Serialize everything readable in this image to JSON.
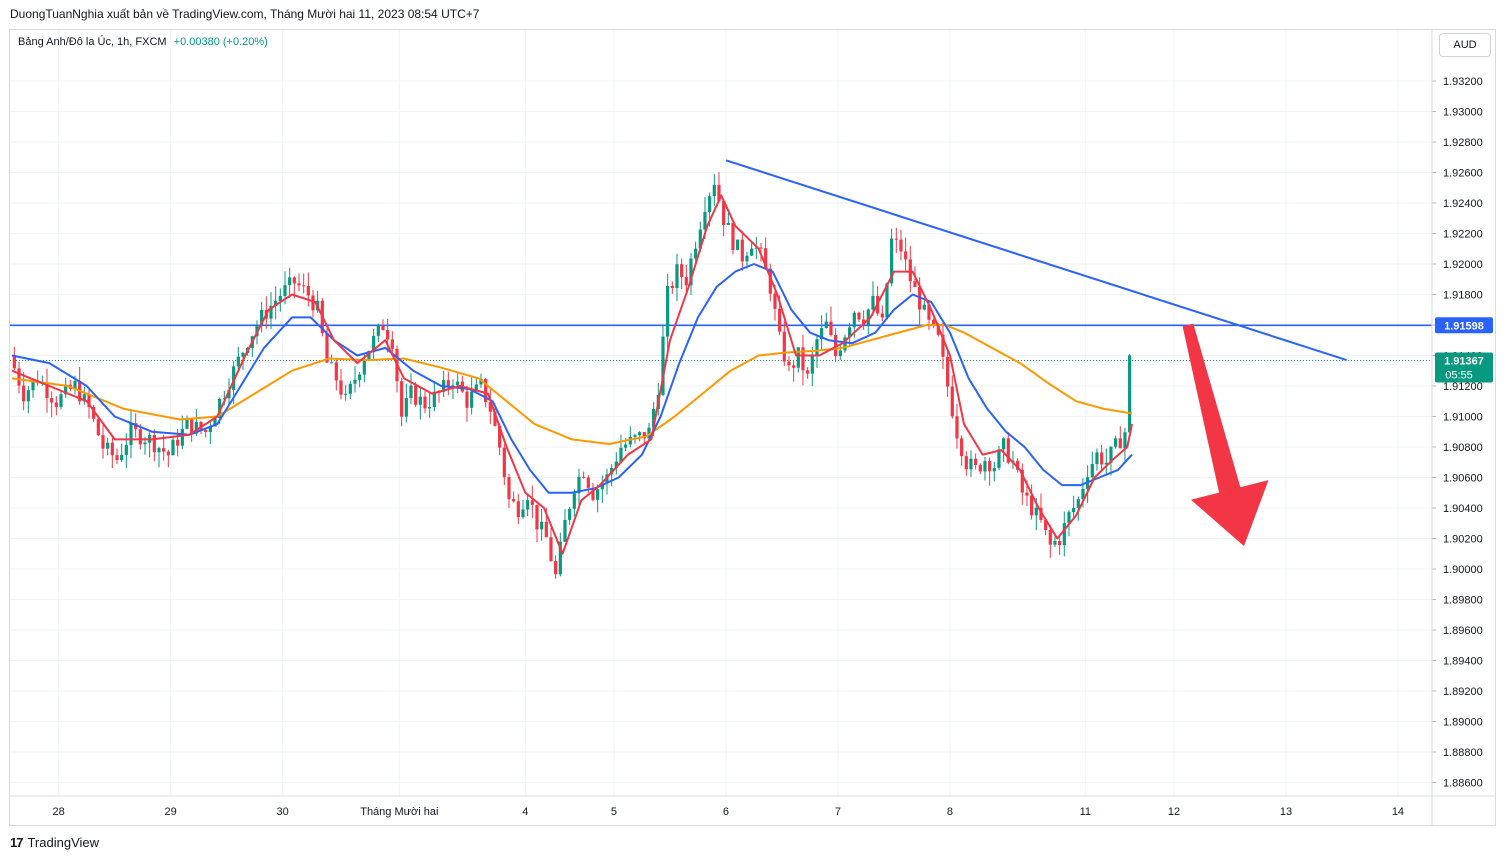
{
  "header": {
    "publisher_line": "DuongTuanNghia xuất bản về TradingView.com, Tháng Mười hai 11, 2023 08:54 UTC+7"
  },
  "legend": {
    "symbol": "Bảng Anh/Đô la Úc, 1h, FXCM",
    "change": "+0.00380 (+0.20%)"
  },
  "currency_button": "AUD",
  "footer": {
    "logo_mark": "17",
    "logo_text": "TradingView"
  },
  "colors": {
    "up": "#089981",
    "down": "#f23645",
    "ema_fast": "#f23645",
    "ema_mid": "#2962ff",
    "ema_slow": "#ff9800",
    "trendline": "#2962ff",
    "arrow": "#f23645",
    "badge": "#2962ff",
    "price_badge": "#089981"
  },
  "chart_data": {
    "type": "candlestick",
    "symbol": "GBPAUD",
    "interval": "1h",
    "ylim": [
      1.885,
      1.9335
    ],
    "y_ticks": [
      "1.93200",
      "1.93000",
      "1.92800",
      "1.92600",
      "1.92400",
      "1.92200",
      "1.92000",
      "1.91800",
      "1.91600",
      "1.91400",
      "1.91200",
      "1.91000",
      "1.90800",
      "1.90600",
      "1.90400",
      "1.90200",
      "1.90000",
      "1.89800",
      "1.89600",
      "1.89400",
      "1.89200",
      "1.89000",
      "1.88800",
      "1.88600"
    ],
    "x_ticks": [
      {
        "label": "28",
        "t": 5
      },
      {
        "label": "29",
        "t": 17
      },
      {
        "label": "30",
        "t": 29
      },
      {
        "label": "Tháng Mười hai",
        "t": 41.5
      },
      {
        "label": "4",
        "t": 55
      },
      {
        "label": "5",
        "t": 64.5
      },
      {
        "label": "6",
        "t": 76.5
      },
      {
        "label": "7",
        "t": 88.5
      },
      {
        "label": "8",
        "t": 100.5
      },
      {
        "label": "11",
        "t": 115
      },
      {
        "label": "12",
        "t": 124.5
      },
      {
        "label": "13",
        "t": 136.5
      },
      {
        "label": "14",
        "t": 148.5
      }
    ],
    "close_path": [
      [
        0,
        1.914
      ],
      [
        1.5,
        1.9115
      ],
      [
        3,
        1.9125
      ],
      [
        5,
        1.911
      ],
      [
        7,
        1.912
      ],
      [
        8.5,
        1.9105
      ],
      [
        10,
        1.908
      ],
      [
        11.5,
        1.9072
      ],
      [
        13,
        1.909
      ],
      [
        15,
        1.9085
      ],
      [
        17,
        1.9075
      ],
      [
        19,
        1.9095
      ],
      [
        21,
        1.909
      ],
      [
        22.5,
        1.911
      ],
      [
        24,
        1.913
      ],
      [
        25.5,
        1.915
      ],
      [
        27,
        1.9165
      ],
      [
        29,
        1.918
      ],
      [
        30.5,
        1.9188
      ],
      [
        32,
        1.918
      ],
      [
        33,
        1.917
      ],
      [
        34,
        1.9135
      ],
      [
        35,
        1.9125
      ],
      [
        36,
        1.911
      ],
      [
        37,
        1.9125
      ],
      [
        38,
        1.914
      ],
      [
        39,
        1.915
      ],
      [
        40,
        1.916
      ],
      [
        41,
        1.915
      ],
      [
        42,
        1.91
      ],
      [
        43,
        1.9115
      ],
      [
        44.5,
        1.9108
      ],
      [
        46,
        1.9115
      ],
      [
        47.5,
        1.9125
      ],
      [
        49,
        1.911
      ],
      [
        50.5,
        1.912
      ],
      [
        51.5,
        1.9105
      ],
      [
        52.5,
        1.908
      ],
      [
        53.5,
        1.9045
      ],
      [
        54.5,
        1.904
      ],
      [
        55.5,
        1.905
      ],
      [
        56.5,
        1.903
      ],
      [
        57.5,
        1.902
      ],
      [
        58.5,
        1.8995
      ],
      [
        59.5,
        1.903
      ],
      [
        60.5,
        1.9055
      ],
      [
        61.5,
        1.9065
      ],
      [
        62.5,
        1.905
      ],
      [
        64,
        1.906
      ],
      [
        65.5,
        1.908
      ],
      [
        67,
        1.9085
      ],
      [
        68.5,
        1.909
      ],
      [
        69.5,
        1.912
      ],
      [
        70.5,
        1.918
      ],
      [
        71.5,
        1.9195
      ],
      [
        72.5,
        1.919
      ],
      [
        73.5,
        1.9215
      ],
      [
        74.5,
        1.924
      ],
      [
        75.5,
        1.9255
      ],
      [
        76.5,
        1.923
      ],
      [
        77.5,
        1.9215
      ],
      [
        78.5,
        1.9205
      ],
      [
        79.5,
        1.9215
      ],
      [
        80.5,
        1.9205
      ],
      [
        81.5,
        1.9185
      ],
      [
        82.5,
        1.915
      ],
      [
        83.5,
        1.913
      ],
      [
        84.5,
        1.914
      ],
      [
        85.5,
        1.9125
      ],
      [
        86.5,
        1.915
      ],
      [
        87.5,
        1.916
      ],
      [
        88.5,
        1.914
      ],
      [
        89.5,
        1.9155
      ],
      [
        90.5,
        1.917
      ],
      [
        91.5,
        1.9165
      ],
      [
        92.5,
        1.9175
      ],
      [
        93.5,
        1.916
      ],
      [
        94.5,
        1.9215
      ],
      [
        95.5,
        1.921
      ],
      [
        96.5,
        1.919
      ],
      [
        97.5,
        1.9175
      ],
      [
        98.5,
        1.916
      ],
      [
        99.5,
        1.915
      ],
      [
        100.5,
        1.912
      ],
      [
        101.5,
        1.909
      ],
      [
        102.5,
        1.907
      ],
      [
        103.5,
        1.9065
      ],
      [
        104.5,
        1.9072
      ],
      [
        105.5,
        1.9068
      ],
      [
        106.5,
        1.908
      ],
      [
        107.5,
        1.907
      ],
      [
        108.5,
        1.905
      ],
      [
        109.5,
        1.904
      ],
      [
        110.5,
        1.903
      ],
      [
        111.5,
        1.9015
      ],
      [
        112.5,
        1.902
      ],
      [
        113.5,
        1.9035
      ],
      [
        114.5,
        1.9045
      ],
      [
        115.5,
        1.9065
      ],
      [
        116.5,
        1.9075
      ],
      [
        117.5,
        1.907
      ],
      [
        118.5,
        1.908
      ],
      [
        119.5,
        1.909
      ],
      [
        120,
        1.9137
      ]
    ],
    "ema_fast_path": [
      [
        0,
        1.913
      ],
      [
        4,
        1.912
      ],
      [
        8,
        1.911
      ],
      [
        11,
        1.9085
      ],
      [
        15,
        1.9085
      ],
      [
        19,
        1.9088
      ],
      [
        22,
        1.91
      ],
      [
        25,
        1.914
      ],
      [
        27.5,
        1.917
      ],
      [
        30,
        1.918
      ],
      [
        32.5,
        1.9175
      ],
      [
        34.5,
        1.915
      ],
      [
        37,
        1.9135
      ],
      [
        40,
        1.915
      ],
      [
        42,
        1.9125
      ],
      [
        45,
        1.9115
      ],
      [
        48,
        1.912
      ],
      [
        51,
        1.9115
      ],
      [
        53,
        1.908
      ],
      [
        55,
        1.905
      ],
      [
        57,
        1.904
      ],
      [
        59,
        1.901
      ],
      [
        61,
        1.9045
      ],
      [
        63,
        1.9055
      ],
      [
        66,
        1.9075
      ],
      [
        68.5,
        1.9085
      ],
      [
        70.5,
        1.915
      ],
      [
        72.5,
        1.9185
      ],
      [
        74.5,
        1.9225
      ],
      [
        76,
        1.9245
      ],
      [
        77.5,
        1.9225
      ],
      [
        80,
        1.921
      ],
      [
        82,
        1.918
      ],
      [
        84,
        1.914
      ],
      [
        86.5,
        1.914
      ],
      [
        89,
        1.9148
      ],
      [
        92,
        1.9165
      ],
      [
        94.5,
        1.9195
      ],
      [
        96.5,
        1.9195
      ],
      [
        98.5,
        1.917
      ],
      [
        100.5,
        1.914
      ],
      [
        102,
        1.9095
      ],
      [
        104,
        1.9075
      ],
      [
        106,
        1.9078
      ],
      [
        108,
        1.9065
      ],
      [
        110,
        1.904
      ],
      [
        112,
        1.902
      ],
      [
        114,
        1.9035
      ],
      [
        116,
        1.906
      ],
      [
        118,
        1.9072
      ],
      [
        119.5,
        1.908
      ],
      [
        120,
        1.9095
      ]
    ],
    "ema_mid_path": [
      [
        0,
        1.914
      ],
      [
        4,
        1.9135
      ],
      [
        8,
        1.912
      ],
      [
        11,
        1.91
      ],
      [
        15,
        1.909
      ],
      [
        19,
        1.9088
      ],
      [
        22,
        1.9095
      ],
      [
        24.5,
        1.912
      ],
      [
        27,
        1.9145
      ],
      [
        30,
        1.9165
      ],
      [
        32,
        1.9165
      ],
      [
        34.5,
        1.915
      ],
      [
        37,
        1.914
      ],
      [
        40,
        1.9145
      ],
      [
        43,
        1.913
      ],
      [
        46,
        1.912
      ],
      [
        49,
        1.9118
      ],
      [
        51.5,
        1.911
      ],
      [
        53.5,
        1.9085
      ],
      [
        55.5,
        1.9065
      ],
      [
        57.5,
        1.905
      ],
      [
        60,
        1.905
      ],
      [
        62.5,
        1.9053
      ],
      [
        65,
        1.906
      ],
      [
        67.5,
        1.9075
      ],
      [
        69.5,
        1.91
      ],
      [
        71.5,
        1.9135
      ],
      [
        73.5,
        1.9165
      ],
      [
        75.5,
        1.9185
      ],
      [
        77.5,
        1.9195
      ],
      [
        79.5,
        1.92
      ],
      [
        81.5,
        1.9195
      ],
      [
        83.5,
        1.917
      ],
      [
        85.5,
        1.9155
      ],
      [
        87.5,
        1.915
      ],
      [
        90,
        1.9148
      ],
      [
        92.5,
        1.9155
      ],
      [
        94.5,
        1.917
      ],
      [
        96.5,
        1.918
      ],
      [
        98.5,
        1.9175
      ],
      [
        100.5,
        1.9155
      ],
      [
        102.5,
        1.9125
      ],
      [
        104.5,
        1.9105
      ],
      [
        106.5,
        1.909
      ],
      [
        108.5,
        1.908
      ],
      [
        110.5,
        1.9065
      ],
      [
        112.5,
        1.9055
      ],
      [
        114.5,
        1.9055
      ],
      [
        116.5,
        1.906
      ],
      [
        118.5,
        1.9065
      ],
      [
        120,
        1.9075
      ]
    ],
    "ema_slow_path": [
      [
        0,
        1.9125
      ],
      [
        6,
        1.912
      ],
      [
        12,
        1.9105
      ],
      [
        18,
        1.9098
      ],
      [
        22,
        1.91
      ],
      [
        26,
        1.9115
      ],
      [
        30,
        1.913
      ],
      [
        34,
        1.9138
      ],
      [
        38,
        1.9137
      ],
      [
        42,
        1.9138
      ],
      [
        46,
        1.9132
      ],
      [
        50,
        1.9125
      ],
      [
        53,
        1.911
      ],
      [
        56,
        1.9095
      ],
      [
        60,
        1.9085
      ],
      [
        64,
        1.9082
      ],
      [
        68,
        1.9087
      ],
      [
        71,
        1.91
      ],
      [
        74,
        1.9115
      ],
      [
        77,
        1.913
      ],
      [
        80,
        1.914
      ],
      [
        83,
        1.9142
      ],
      [
        86,
        1.9143
      ],
      [
        89,
        1.9145
      ],
      [
        92,
        1.915
      ],
      [
        95,
        1.9155
      ],
      [
        98,
        1.916
      ],
      [
        100,
        1.916
      ],
      [
        102,
        1.9155
      ],
      [
        105,
        1.9145
      ],
      [
        108,
        1.9135
      ],
      [
        111,
        1.9122
      ],
      [
        114,
        1.911
      ],
      [
        117,
        1.9105
      ],
      [
        120,
        1.9102
      ]
    ],
    "horizontal_level": 1.91598,
    "trendline": {
      "start": [
        76.5,
        1.9268
      ],
      "end": [
        143,
        1.9137
      ]
    },
    "arrow_annotation": {
      "start": [
        126,
        1.916
      ],
      "end": [
        132,
        1.9015
      ],
      "color": "#f23645"
    },
    "last_price": "1.91367",
    "countdown": "05:55",
    "level_label": "1.91598"
  }
}
